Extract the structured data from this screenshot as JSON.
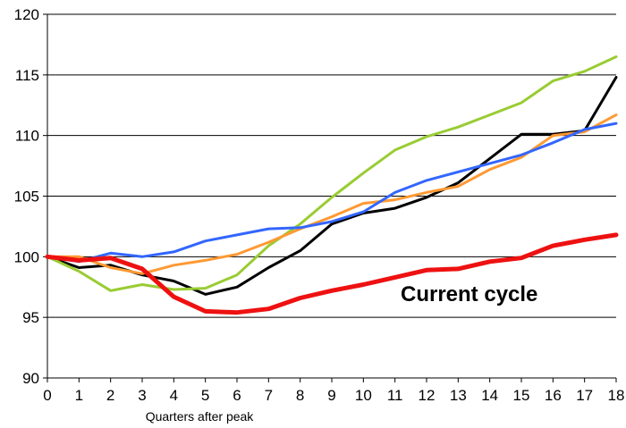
{
  "chart_data": {
    "type": "line",
    "xlabel": "Quarters after peak",
    "ylabel": "",
    "x": [
      0,
      1,
      2,
      3,
      4,
      5,
      6,
      7,
      8,
      9,
      10,
      11,
      12,
      13,
      14,
      15,
      16,
      17,
      18
    ],
    "xlim": [
      0,
      18
    ],
    "ylim": [
      90,
      120
    ],
    "yticks": [
      90,
      95,
      100,
      105,
      110,
      115,
      120
    ],
    "grid": "horizontal",
    "annotation": "Current cycle",
    "series": [
      {
        "color": "#000000",
        "width": 3,
        "values": [
          100,
          99.1,
          99.3,
          98.5,
          98.0,
          96.9,
          97.5,
          99.1,
          100.5,
          102.7,
          103.6,
          104.0,
          104.9,
          106.1,
          108.1,
          110.1,
          110.1,
          110.4,
          114.8
        ]
      },
      {
        "color": "#99CC33",
        "width": 3,
        "values": [
          100,
          98.8,
          97.2,
          97.7,
          97.3,
          97.4,
          98.5,
          100.9,
          102.7,
          104.9,
          106.9,
          108.8,
          109.9,
          110.7,
          111.7,
          112.7,
          114.5,
          115.3,
          116.5
        ]
      },
      {
        "color": "#FF9933",
        "width": 3,
        "values": [
          100,
          100.0,
          99.1,
          98.6,
          99.3,
          99.7,
          100.2,
          101.2,
          102.3,
          103.3,
          104.4,
          104.7,
          105.3,
          105.8,
          107.2,
          108.2,
          110.0,
          110.3,
          111.7
        ]
      },
      {
        "color": "#3366FF",
        "width": 3,
        "values": [
          100,
          99.6,
          100.3,
          100.0,
          100.4,
          101.3,
          101.8,
          102.3,
          102.4,
          102.9,
          103.7,
          105.3,
          106.3,
          107.0,
          107.7,
          108.4,
          109.4,
          110.5,
          111.0
        ]
      },
      {
        "color": "#EE1111",
        "width": 5,
        "values": [
          100,
          99.7,
          99.9,
          99.0,
          96.7,
          95.5,
          95.4,
          95.7,
          96.6,
          97.2,
          97.7,
          98.3,
          98.9,
          99.0,
          99.6,
          99.9,
          100.9,
          101.4,
          101.8
        ]
      }
    ]
  }
}
